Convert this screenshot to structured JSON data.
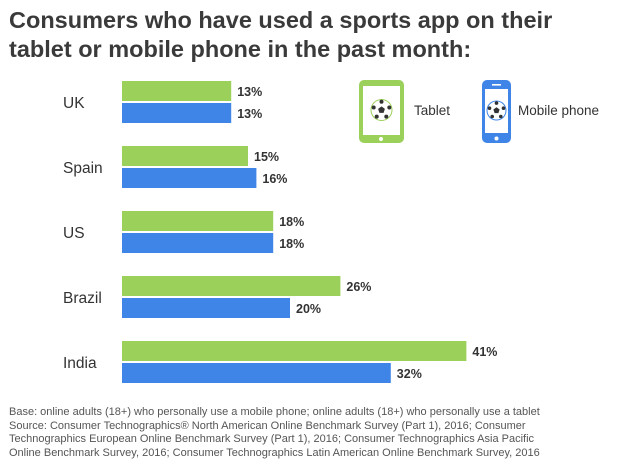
{
  "title": "Consumers who have used a sports app on their tablet or mobile phone in the past month:",
  "legend": [
    {
      "label": "Tablet",
      "icon": "tablet-soccer-icon"
    },
    {
      "label": "Mobile phone",
      "icon": "phone-soccer-icon"
    }
  ],
  "colors": {
    "tablet": "#9bd05a",
    "mobile": "#3f85e8",
    "text": "#333333"
  },
  "chart_data": {
    "type": "bar",
    "orientation": "horizontal",
    "title": "Consumers who have used a sports app on their tablet or mobile phone in the past month:",
    "categories": [
      "UK",
      "Spain",
      "US",
      "Brazil",
      "India"
    ],
    "series": [
      {
        "name": "Tablet",
        "values": [
          13,
          15,
          18,
          26,
          41
        ],
        "labels": [
          "13%",
          "15%",
          "18%",
          "26%",
          "41%"
        ]
      },
      {
        "name": "Mobile phone",
        "values": [
          13,
          16,
          18,
          20,
          32
        ],
        "labels": [
          "13%",
          "16%",
          "18%",
          "20%",
          "32%"
        ]
      }
    ],
    "value_unit": "%",
    "grid": false,
    "legend_position": "top-right"
  },
  "footer": {
    "lines": [
      "Base: online adults (18+) who personally use a mobile phone; online adults (18+) who personally use a tablet",
      "Source: Consumer Technographics® North American Online Benchmark Survey (Part 1), 2016; Consumer",
      "Technographics European Online Benchmark Survey (Part 1), 2016; Consumer Technographics Asia Pacific",
      "Online Benchmark Survey, 2016; Consumer Technographics Latin American Online Benchmark Survey, 2016"
    ]
  }
}
